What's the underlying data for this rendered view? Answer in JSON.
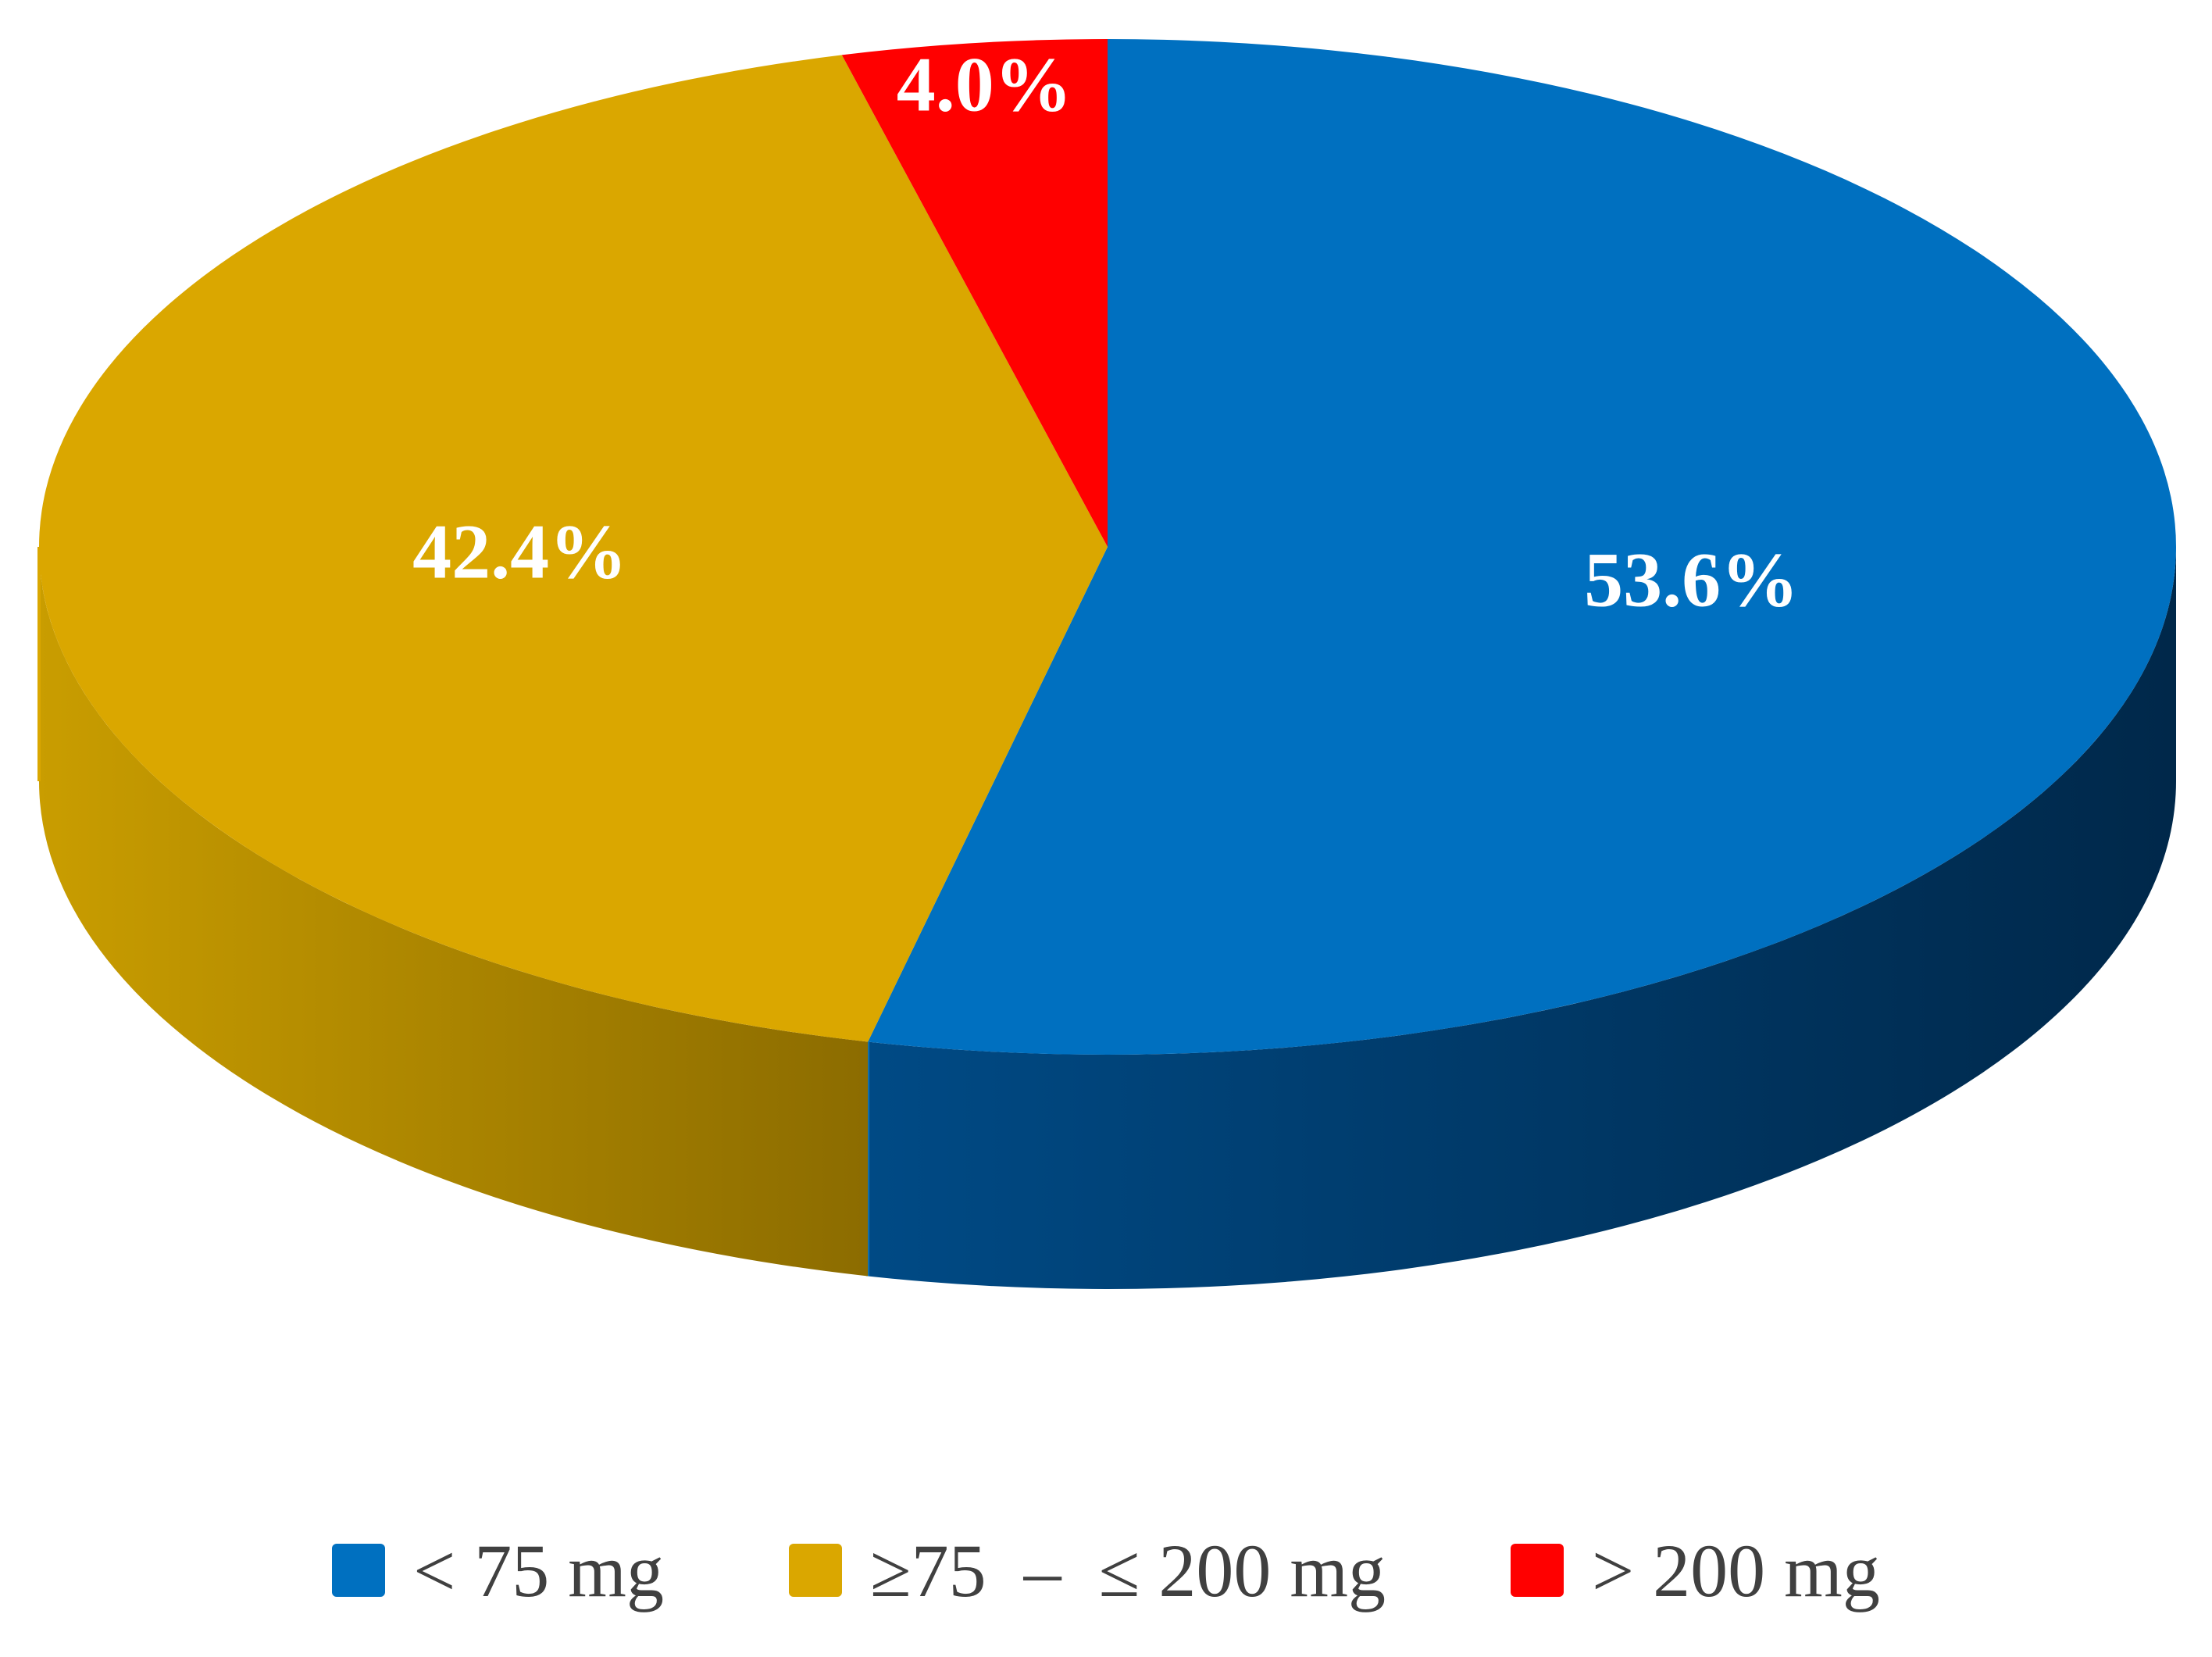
{
  "chart_data": {
    "type": "pie",
    "title": "",
    "slices": [
      {
        "label": "< 75 mg",
        "value": 53.6,
        "display": "53.6%",
        "color": "#0070C0",
        "side_color": "#003E6E"
      },
      {
        "label": "≥75  –  ≤ 200 mg",
        "value": 42.4,
        "display": "42.4%",
        "color": "#DAA700",
        "side_color": "#A07800"
      },
      {
        "label": "> 200 mg",
        "value": 4.0,
        "display": "4.0%",
        "color": "#FF0000",
        "side_color": "#B00000"
      }
    ],
    "legend_position": "bottom",
    "style": "3d"
  }
}
